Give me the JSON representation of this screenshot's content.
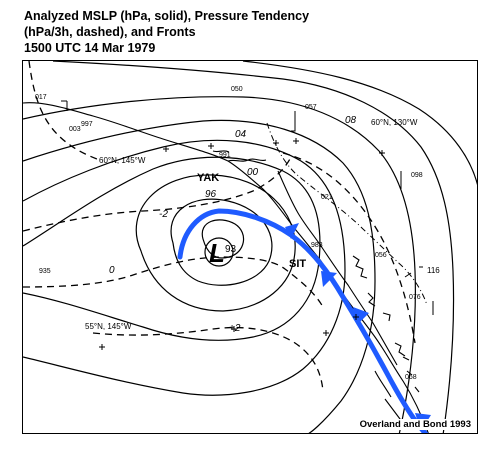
{
  "title": {
    "line1": "Analyzed MSLP (hPa, solid), Pressure Tendency",
    "line2": "(hPa/3h, dashed), and Fronts",
    "line3": "1500 UTC  14 Mar 1979"
  },
  "credit": "Overland and Bond 1993",
  "low": {
    "symbol": "L",
    "value": "93",
    "color": "#ff0000"
  },
  "front": {
    "color": "#1f5bff"
  },
  "stations": {
    "yak": "YAK",
    "sit": "SIT"
  },
  "graticule": {
    "g1": "60°N, 145°W",
    "g2": "60°N, 130°W",
    "g3": "55°N, 145°W"
  },
  "isobar_labels": {
    "i04": "04",
    "i08": "08",
    "i00": "00",
    "i96": "96"
  },
  "tendency_labels": {
    "t_minus2": "-2",
    "t_zero": "0",
    "t_plus2": "+2"
  },
  "station_values": {
    "v017": "017",
    "v997": "997",
    "v003": "003",
    "v050": "050",
    "v057": "057",
    "v991": "991",
    "v021": "021",
    "v098": "098",
    "v983": "983",
    "v056": "056",
    "v116": "116",
    "v076": "076",
    "v068": "068",
    "v935": "935"
  }
}
